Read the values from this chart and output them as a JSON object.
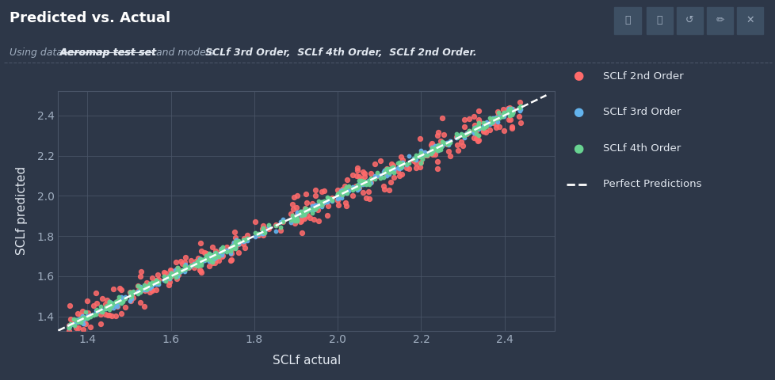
{
  "background_color": "#2d3748",
  "plot_bg_color": "#2d3748",
  "title": "Predicted vs. Actual",
  "xlabel": "SCLf actual",
  "ylabel": "SCLf predicted",
  "xlim": [
    1.33,
    2.52
  ],
  "ylim": [
    1.33,
    2.52
  ],
  "xticks": [
    1.4,
    1.6,
    1.8,
    2.0,
    2.2,
    2.4
  ],
  "yticks": [
    1.4,
    1.6,
    1.8,
    2.0,
    2.2,
    2.4
  ],
  "grid_color": "#4a5568",
  "tick_color": "#a0aec0",
  "label_color": "#e2e8f0",
  "title_color": "#ffffff",
  "series_2nd_color": "#ff6b6b",
  "series_3rd_color": "#63b3ed",
  "series_4th_color": "#68d391",
  "perfect_line_color": "#ffffff",
  "n_points": 300,
  "x_min": 1.35,
  "x_max": 2.45,
  "noise_2nd": 0.045,
  "noise_3rd": 0.01,
  "noise_4th": 0.012,
  "legend_labels": [
    "SCLf 2nd Order",
    "SCLf 3rd Order",
    "SCLf 4th Order",
    "Perfect Predictions"
  ],
  "marker_size_2nd": 18,
  "marker_size_3rd": 10,
  "marker_size_4th": 10,
  "alpha_2nd": 0.85,
  "alpha_3rd": 0.9,
  "alpha_4th": 0.9,
  "toolbar_bg_color": "#3d4f63"
}
